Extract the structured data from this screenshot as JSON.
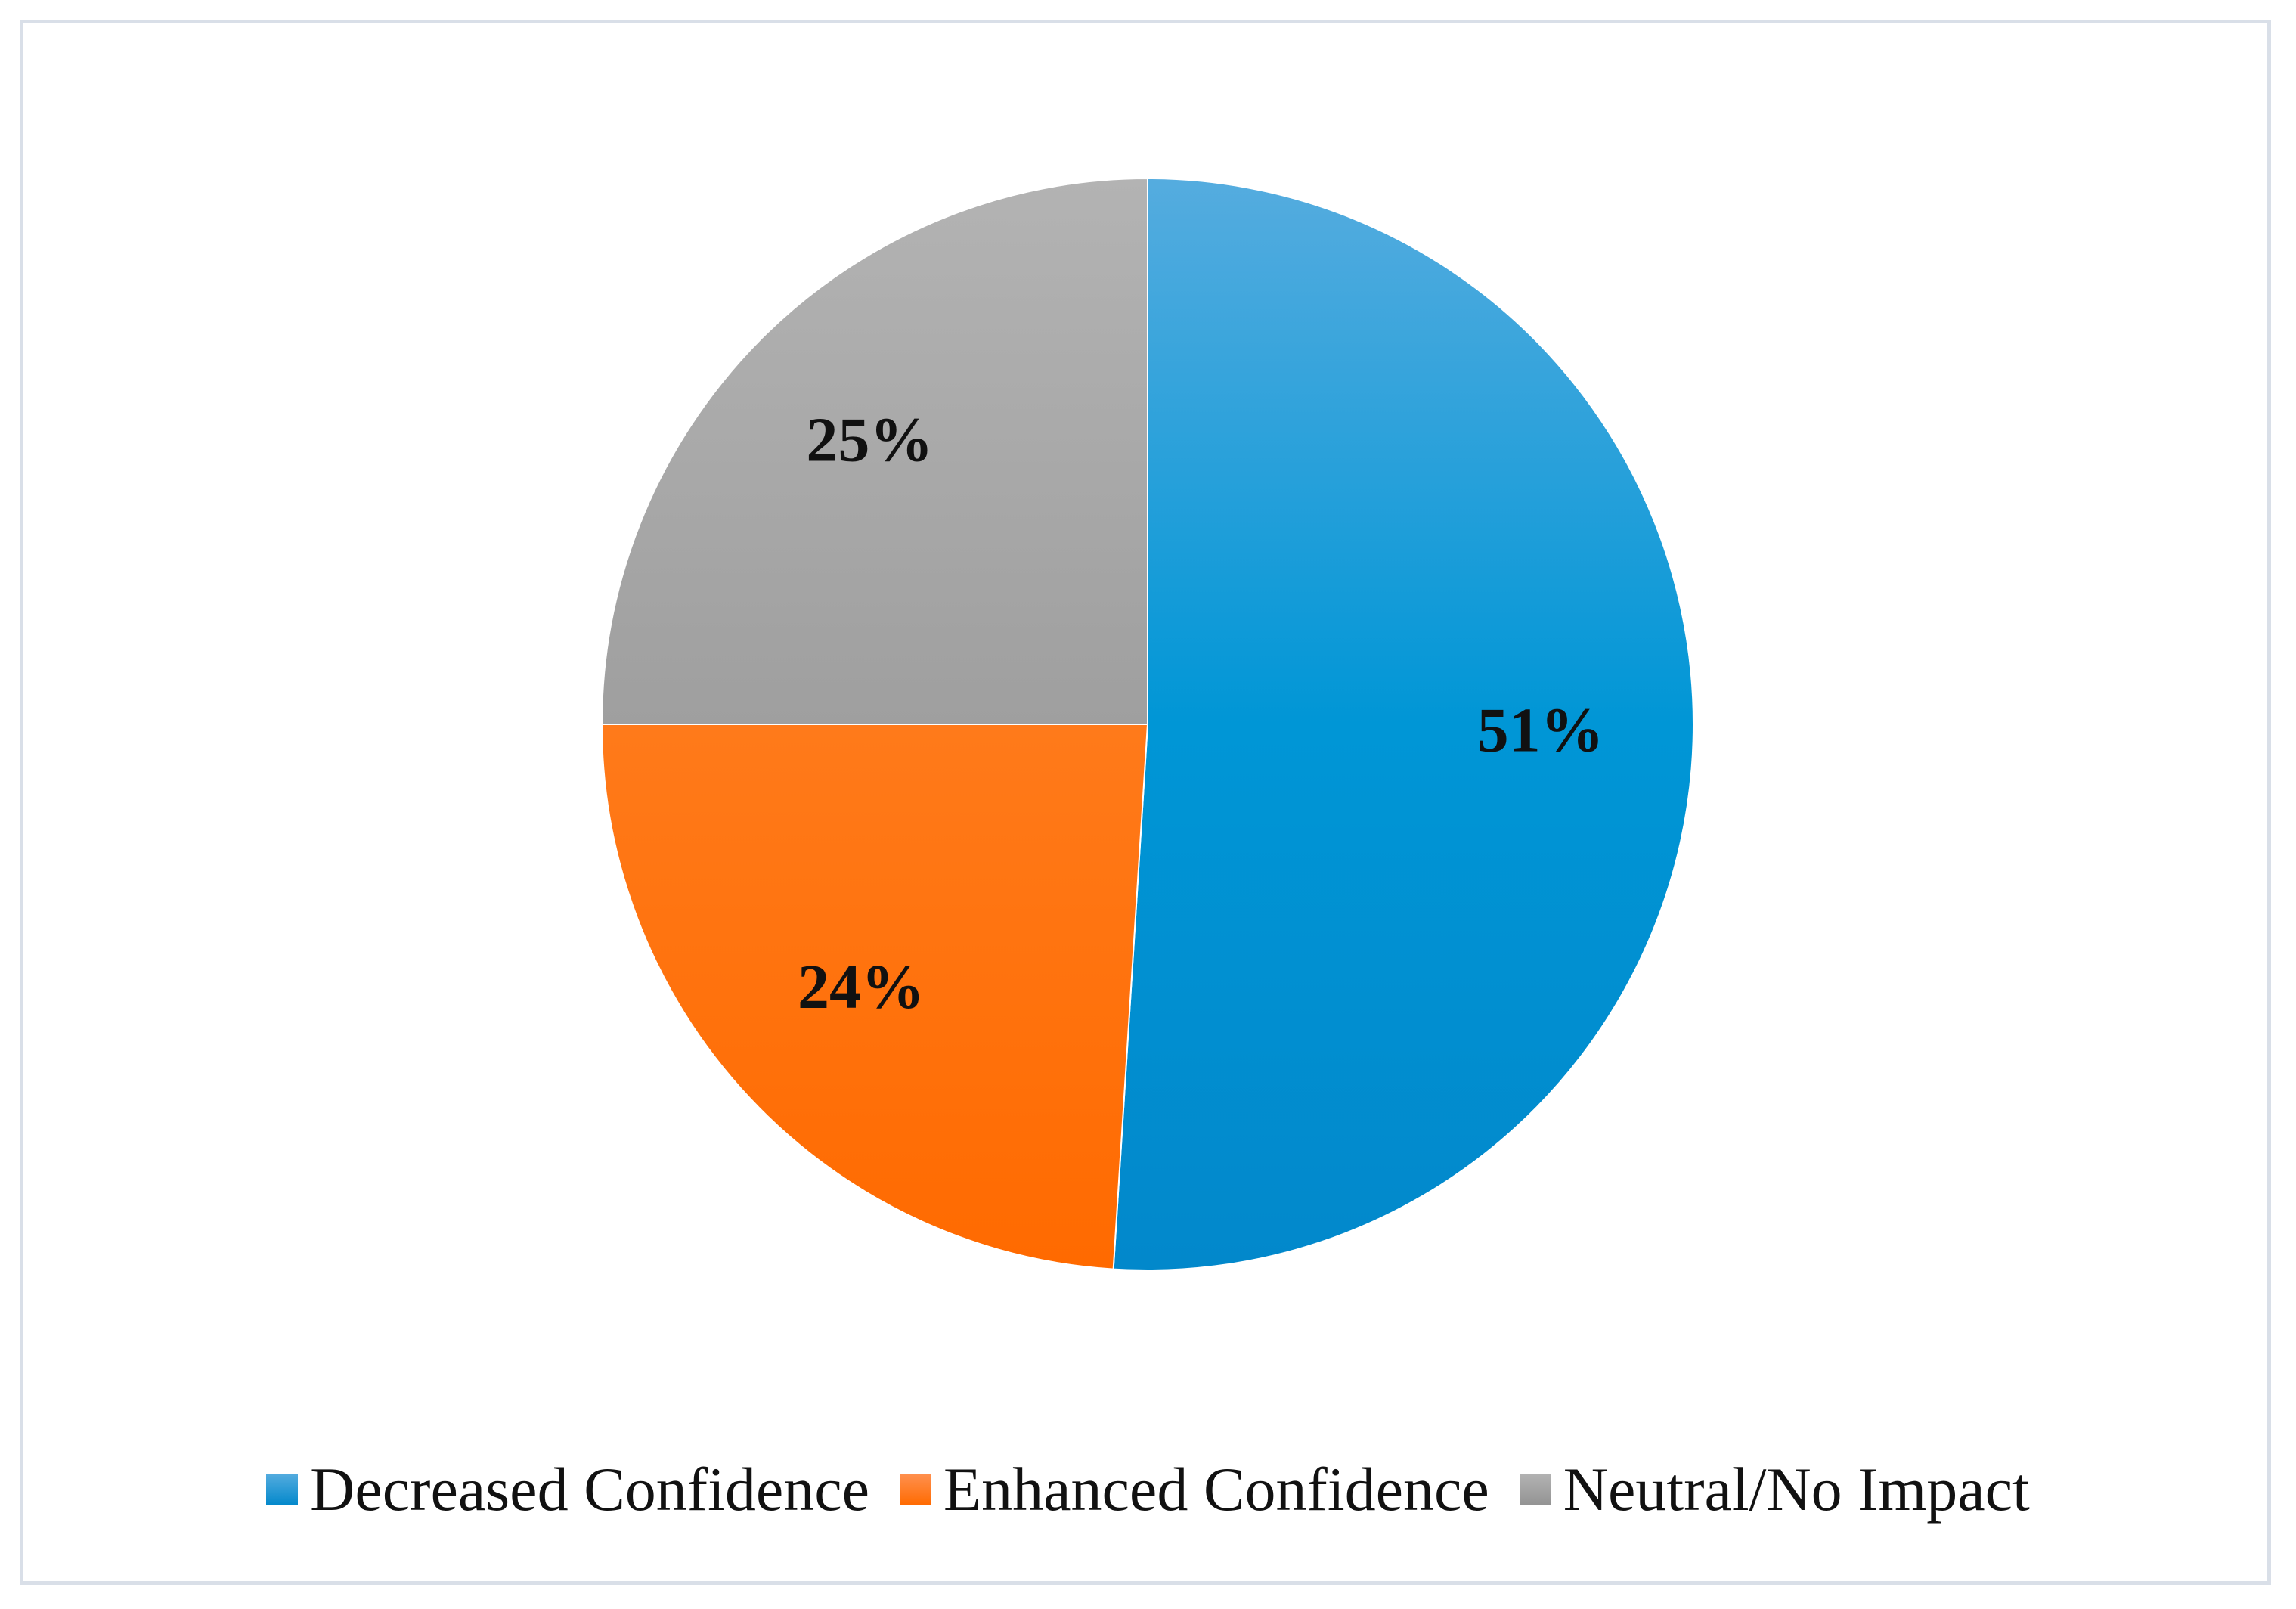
{
  "chart_data": {
    "type": "pie",
    "title": "",
    "slices": [
      {
        "name": "Decreased Confidence",
        "value": 51,
        "label": "51%",
        "color": "#0096d6",
        "color_light": "#55acdf",
        "color_dark": "#0288cb"
      },
      {
        "name": "Enhanced Confidence",
        "value": 24,
        "label": "24%",
        "color": "#ff7a1a",
        "color_light": "#ff9150",
        "color_dark": "#ff6a00"
      },
      {
        "name": "Neutral/No Impact",
        "value": 25,
        "label": "25%",
        "color": "#9f9f9f",
        "color_light": "#b3b3b3",
        "color_dark": "#939393"
      }
    ],
    "legend_position": "bottom",
    "start_angle_deg": 0,
    "direction": "clockwise"
  }
}
